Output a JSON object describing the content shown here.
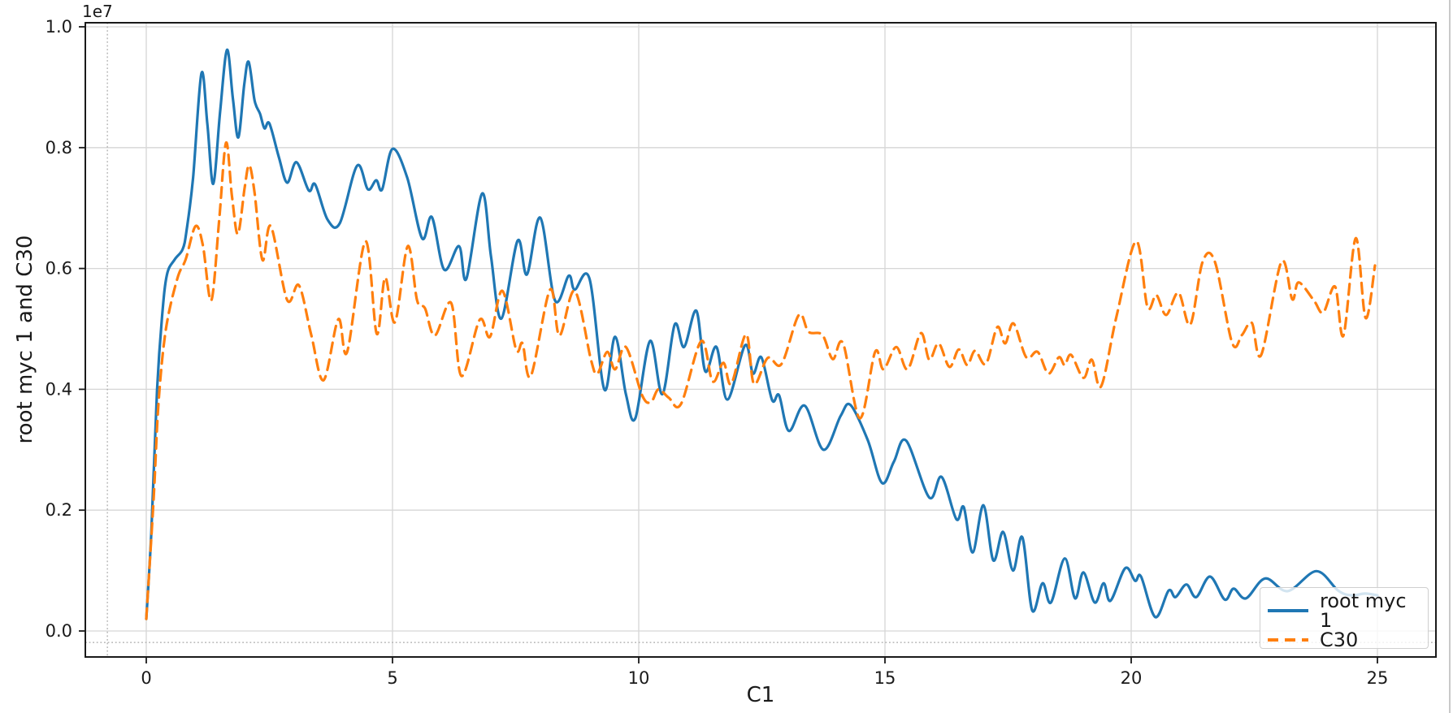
{
  "figure": {
    "y_offset_label": "1e7"
  },
  "legend": {
    "items": [
      {
        "label": "root myc 1",
        "color": "#1f77b4",
        "style": "solid"
      },
      {
        "label": "C30",
        "color": "#ff7f0e",
        "style": "dashed"
      }
    ]
  },
  "chart_data": {
    "type": "line",
    "title": "",
    "xlabel": "C1",
    "ylabel": "root myc 1 and C30",
    "y_multiplier_text": "1e7",
    "y_unit": "values are in units of 1e7",
    "xlim": [
      -1.24,
      26.2
    ],
    "ylim": [
      -0.435,
      1.007
    ],
    "grid": true,
    "legend_position": "lower right",
    "x_ticks": [
      0,
      5,
      10,
      15,
      20,
      25
    ],
    "x_tick_labels": [
      "0",
      "5",
      "10",
      "15",
      "20",
      "25"
    ],
    "y_ticks": [
      0.0,
      0.2,
      0.4,
      0.6,
      0.8,
      1.0
    ],
    "y_tick_labels": [
      "0.0",
      "0.2",
      "0.4",
      "0.6",
      "0.8",
      "1.0"
    ],
    "reference_lines": {
      "vline_x": -0.79,
      "hline_y": -0.019
    },
    "colors": {
      "series1": "#1f77b4",
      "series2": "#ff7f0e",
      "grid": "#d6d6d6",
      "spine": "#1a1a1a",
      "dotted_ref": "#a6a6a6"
    },
    "series": [
      {
        "name": "root myc 1",
        "color": "#1f77b4",
        "dash": "solid",
        "points": [
          [
            0.0,
            0.02
          ],
          [
            0.1,
            0.16
          ],
          [
            0.22,
            0.4
          ],
          [
            0.32,
            0.52
          ],
          [
            0.42,
            0.59
          ],
          [
            0.58,
            0.615
          ],
          [
            0.74,
            0.632
          ],
          [
            0.82,
            0.664
          ],
          [
            0.95,
            0.75
          ],
          [
            1.12,
            0.923
          ],
          [
            1.24,
            0.84
          ],
          [
            1.36,
            0.74
          ],
          [
            1.5,
            0.86
          ],
          [
            1.64,
            0.962
          ],
          [
            1.76,
            0.88
          ],
          [
            1.87,
            0.817
          ],
          [
            1.99,
            0.905
          ],
          [
            2.08,
            0.942
          ],
          [
            2.2,
            0.878
          ],
          [
            2.31,
            0.856
          ],
          [
            2.4,
            0.832
          ],
          [
            2.5,
            0.84
          ],
          [
            2.69,
            0.785
          ],
          [
            2.86,
            0.742
          ],
          [
            3.05,
            0.776
          ],
          [
            3.3,
            0.729
          ],
          [
            3.43,
            0.739
          ],
          [
            3.68,
            0.681
          ],
          [
            3.93,
            0.675
          ],
          [
            4.28,
            0.77
          ],
          [
            4.5,
            0.731
          ],
          [
            4.67,
            0.746
          ],
          [
            4.79,
            0.731
          ],
          [
            5.0,
            0.798
          ],
          [
            5.3,
            0.75
          ],
          [
            5.6,
            0.65
          ],
          [
            5.8,
            0.685
          ],
          [
            6.05,
            0.598
          ],
          [
            6.35,
            0.637
          ],
          [
            6.5,
            0.583
          ],
          [
            6.82,
            0.724
          ],
          [
            7.0,
            0.62
          ],
          [
            7.21,
            0.517
          ],
          [
            7.54,
            0.646
          ],
          [
            7.73,
            0.59
          ],
          [
            8.0,
            0.684
          ],
          [
            8.3,
            0.547
          ],
          [
            8.58,
            0.588
          ],
          [
            8.7,
            0.565
          ],
          [
            9.0,
            0.583
          ],
          [
            9.3,
            0.4
          ],
          [
            9.52,
            0.487
          ],
          [
            9.74,
            0.392
          ],
          [
            9.93,
            0.352
          ],
          [
            10.23,
            0.48
          ],
          [
            10.48,
            0.392
          ],
          [
            10.73,
            0.507
          ],
          [
            10.92,
            0.47
          ],
          [
            11.17,
            0.53
          ],
          [
            11.35,
            0.43
          ],
          [
            11.58,
            0.47
          ],
          [
            11.8,
            0.383
          ],
          [
            12.16,
            0.473
          ],
          [
            12.32,
            0.426
          ],
          [
            12.49,
            0.453
          ],
          [
            12.71,
            0.382
          ],
          [
            12.85,
            0.39
          ],
          [
            13.05,
            0.331
          ],
          [
            13.37,
            0.373
          ],
          [
            13.75,
            0.3
          ],
          [
            14.1,
            0.356
          ],
          [
            14.3,
            0.374
          ],
          [
            14.65,
            0.316
          ],
          [
            14.94,
            0.245
          ],
          [
            15.18,
            0.28
          ],
          [
            15.43,
            0.315
          ],
          [
            15.9,
            0.221
          ],
          [
            16.15,
            0.255
          ],
          [
            16.45,
            0.185
          ],
          [
            16.6,
            0.205
          ],
          [
            16.78,
            0.13
          ],
          [
            17.0,
            0.208
          ],
          [
            17.2,
            0.117
          ],
          [
            17.4,
            0.164
          ],
          [
            17.6,
            0.1
          ],
          [
            17.79,
            0.155
          ],
          [
            17.99,
            0.034
          ],
          [
            18.2,
            0.079
          ],
          [
            18.37,
            0.047
          ],
          [
            18.65,
            0.12
          ],
          [
            18.86,
            0.054
          ],
          [
            19.03,
            0.097
          ],
          [
            19.26,
            0.047
          ],
          [
            19.44,
            0.079
          ],
          [
            19.58,
            0.05
          ],
          [
            19.88,
            0.104
          ],
          [
            20.08,
            0.083
          ],
          [
            20.2,
            0.09
          ],
          [
            20.49,
            0.023
          ],
          [
            20.76,
            0.067
          ],
          [
            20.9,
            0.056
          ],
          [
            21.12,
            0.077
          ],
          [
            21.32,
            0.056
          ],
          [
            21.6,
            0.09
          ],
          [
            21.9,
            0.052
          ],
          [
            22.08,
            0.07
          ],
          [
            22.33,
            0.054
          ],
          [
            22.72,
            0.087
          ],
          [
            23.18,
            0.066
          ],
          [
            23.76,
            0.099
          ],
          [
            24.2,
            0.067
          ],
          [
            24.47,
            0.059
          ],
          [
            24.75,
            0.062
          ],
          [
            25.0,
            0.059
          ]
        ]
      },
      {
        "name": "C30",
        "color": "#ff7f0e",
        "dash": "dashed",
        "points": [
          [
            0.0,
            0.02
          ],
          [
            0.15,
            0.22
          ],
          [
            0.25,
            0.38
          ],
          [
            0.4,
            0.5
          ],
          [
            0.63,
            0.583
          ],
          [
            0.8,
            0.615
          ],
          [
            1.0,
            0.67
          ],
          [
            1.15,
            0.638
          ],
          [
            1.32,
            0.547
          ],
          [
            1.48,
            0.68
          ],
          [
            1.62,
            0.808
          ],
          [
            1.74,
            0.72
          ],
          [
            1.86,
            0.657
          ],
          [
            2.0,
            0.735
          ],
          [
            2.09,
            0.771
          ],
          [
            2.2,
            0.725
          ],
          [
            2.36,
            0.614
          ],
          [
            2.53,
            0.67
          ],
          [
            2.86,
            0.548
          ],
          [
            3.1,
            0.572
          ],
          [
            3.35,
            0.49
          ],
          [
            3.6,
            0.415
          ],
          [
            3.9,
            0.516
          ],
          [
            4.08,
            0.462
          ],
          [
            4.45,
            0.645
          ],
          [
            4.68,
            0.492
          ],
          [
            4.85,
            0.585
          ],
          [
            5.05,
            0.511
          ],
          [
            5.31,
            0.637
          ],
          [
            5.5,
            0.547
          ],
          [
            5.66,
            0.534
          ],
          [
            5.86,
            0.489
          ],
          [
            6.19,
            0.543
          ],
          [
            6.4,
            0.422
          ],
          [
            6.77,
            0.515
          ],
          [
            6.98,
            0.487
          ],
          [
            7.23,
            0.563
          ],
          [
            7.51,
            0.466
          ],
          [
            7.64,
            0.476
          ],
          [
            7.81,
            0.422
          ],
          [
            8.2,
            0.565
          ],
          [
            8.39,
            0.489
          ],
          [
            8.7,
            0.563
          ],
          [
            9.03,
            0.449
          ],
          [
            9.16,
            0.426
          ],
          [
            9.36,
            0.462
          ],
          [
            9.52,
            0.433
          ],
          [
            9.74,
            0.47
          ],
          [
            10.07,
            0.39
          ],
          [
            10.25,
            0.379
          ],
          [
            10.4,
            0.4
          ],
          [
            10.61,
            0.386
          ],
          [
            10.86,
            0.376
          ],
          [
            11.27,
            0.48
          ],
          [
            11.5,
            0.413
          ],
          [
            11.72,
            0.444
          ],
          [
            11.88,
            0.409
          ],
          [
            12.18,
            0.491
          ],
          [
            12.34,
            0.409
          ],
          [
            12.62,
            0.452
          ],
          [
            12.9,
            0.442
          ],
          [
            13.25,
            0.523
          ],
          [
            13.45,
            0.495
          ],
          [
            13.73,
            0.49
          ],
          [
            13.94,
            0.45
          ],
          [
            14.15,
            0.476
          ],
          [
            14.49,
            0.352
          ],
          [
            14.8,
            0.462
          ],
          [
            14.97,
            0.433
          ],
          [
            15.23,
            0.47
          ],
          [
            15.46,
            0.433
          ],
          [
            15.73,
            0.493
          ],
          [
            15.9,
            0.449
          ],
          [
            16.09,
            0.476
          ],
          [
            16.31,
            0.437
          ],
          [
            16.5,
            0.466
          ],
          [
            16.67,
            0.44
          ],
          [
            16.83,
            0.464
          ],
          [
            17.05,
            0.442
          ],
          [
            17.28,
            0.503
          ],
          [
            17.44,
            0.476
          ],
          [
            17.61,
            0.509
          ],
          [
            17.87,
            0.453
          ],
          [
            18.1,
            0.462
          ],
          [
            18.32,
            0.426
          ],
          [
            18.53,
            0.453
          ],
          [
            18.65,
            0.44
          ],
          [
            18.78,
            0.457
          ],
          [
            19.03,
            0.419
          ],
          [
            19.2,
            0.449
          ],
          [
            19.39,
            0.405
          ],
          [
            19.7,
            0.52
          ],
          [
            20.1,
            0.645
          ],
          [
            20.33,
            0.536
          ],
          [
            20.51,
            0.556
          ],
          [
            20.71,
            0.523
          ],
          [
            20.96,
            0.56
          ],
          [
            21.2,
            0.507
          ],
          [
            21.45,
            0.611
          ],
          [
            21.7,
            0.611
          ],
          [
            22.05,
            0.477
          ],
          [
            22.25,
            0.49
          ],
          [
            22.45,
            0.51
          ],
          [
            22.64,
            0.457
          ],
          [
            23.05,
            0.611
          ],
          [
            23.27,
            0.549
          ],
          [
            23.4,
            0.577
          ],
          [
            23.71,
            0.547
          ],
          [
            23.9,
            0.527
          ],
          [
            24.14,
            0.57
          ],
          [
            24.31,
            0.489
          ],
          [
            24.56,
            0.65
          ],
          [
            24.76,
            0.518
          ],
          [
            24.95,
            0.605
          ]
        ]
      }
    ]
  }
}
